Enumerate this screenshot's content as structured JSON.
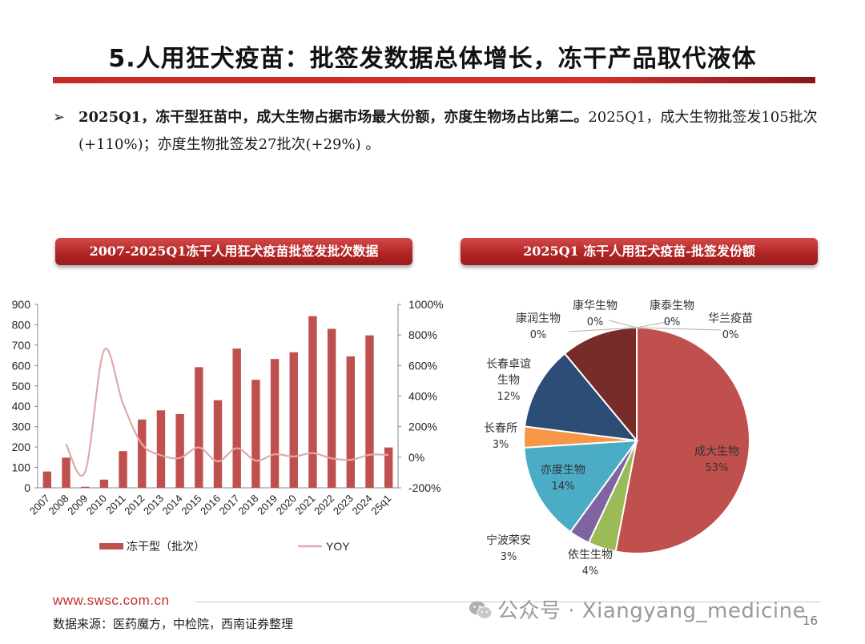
{
  "slide": {
    "title": "5.人用狂犬疫苗：批签发数据总体增长，冻干产品取代液体",
    "bullet_bold": "2025Q1，冻干型狂苗中，成大生物占据市场最大份额，亦度生物场占比第二。",
    "bullet_normal": "2025Q1，成大生物批签发105批次(+110%)；亦度生物批签发27批次(+29%) 。",
    "left_panel_title": "2007-2025Q1冻干人用狂犬疫苗批签发批次数据",
    "right_panel_title": "2025Q1 冻干人用狂犬疫苗-批签发份额",
    "footer_url": "www.swsc.com.cn",
    "footer_source": "数据来源：医药魔方，中检院，西南证券整理",
    "watermark": "公众号 · Xiangyang_medicine",
    "page_number": "16",
    "accent_color": "#c62a2a"
  },
  "chart_data": [
    {
      "type": "bar",
      "categories": [
        "2007",
        "2008",
        "2009",
        "2010",
        "2011",
        "2012",
        "2013",
        "2014",
        "2015",
        "2016",
        "2017",
        "2018",
        "2019",
        "2020",
        "2021",
        "2022",
        "2023",
        "2024",
        "25q1"
      ],
      "series": [
        {
          "name": "冻干型（批次）",
          "type": "bar",
          "axis": "left",
          "color": "#c0504d",
          "values": [
            80,
            148,
            5,
            40,
            180,
            335,
            380,
            362,
            592,
            430,
            683,
            530,
            632,
            665,
            842,
            780,
            645,
            748,
            198
          ]
        },
        {
          "name": "YOY",
          "type": "line",
          "axis": "right",
          "color": "#e0a8ad",
          "values": [
            null,
            85,
            -97,
            700,
            350,
            86,
            13,
            -5,
            64,
            -27,
            59,
            -22,
            19,
            5,
            27,
            -7,
            -17,
            16,
            15
          ]
        }
      ],
      "left_axis": {
        "min": 0,
        "max": 900,
        "ticks": [
          "0",
          "100",
          "200",
          "300",
          "400",
          "500",
          "600",
          "700",
          "800",
          "900"
        ]
      },
      "right_axis": {
        "min": -200,
        "max": 1000,
        "ticks": [
          "-200%",
          "0%",
          "200%",
          "400%",
          "600%",
          "800%",
          "1000%"
        ]
      },
      "legend_position": "bottom",
      "grid": false
    },
    {
      "type": "pie",
      "slices": [
        {
          "label": "成大生物",
          "pct": "53%",
          "value": 53,
          "color": "#c0504d"
        },
        {
          "label": "依生生物",
          "pct": "4%",
          "value": 4,
          "color": "#9bbb59"
        },
        {
          "label": "宁波荣安",
          "pct": "3%",
          "value": 3,
          "color": "#8064a2"
        },
        {
          "label": "亦度生物",
          "pct": "14%",
          "value": 14,
          "color": "#4bacc6"
        },
        {
          "label": "长春所",
          "pct": "3%",
          "value": 3,
          "color": "#f79646"
        },
        {
          "label": "长春卓谊\n生物",
          "pct": "12%",
          "value": 12,
          "color": "#2c4d75"
        },
        {
          "label": "",
          "pct": "",
          "value": 11,
          "color": "#772c2a"
        },
        {
          "label": "康润生物",
          "pct": "0%",
          "value": 0,
          "color": "#a0a0a0"
        },
        {
          "label": "康华生物",
          "pct": "0%",
          "value": 0,
          "color": "#a0a0a0"
        },
        {
          "label": "康泰生物",
          "pct": "0%",
          "value": 0,
          "color": "#a0a0a0"
        },
        {
          "label": "华兰疫苗",
          "pct": "0%",
          "value": 0,
          "color": "#a0a0a0"
        }
      ],
      "start_angle_deg": 0,
      "direction": "clockwise"
    }
  ]
}
